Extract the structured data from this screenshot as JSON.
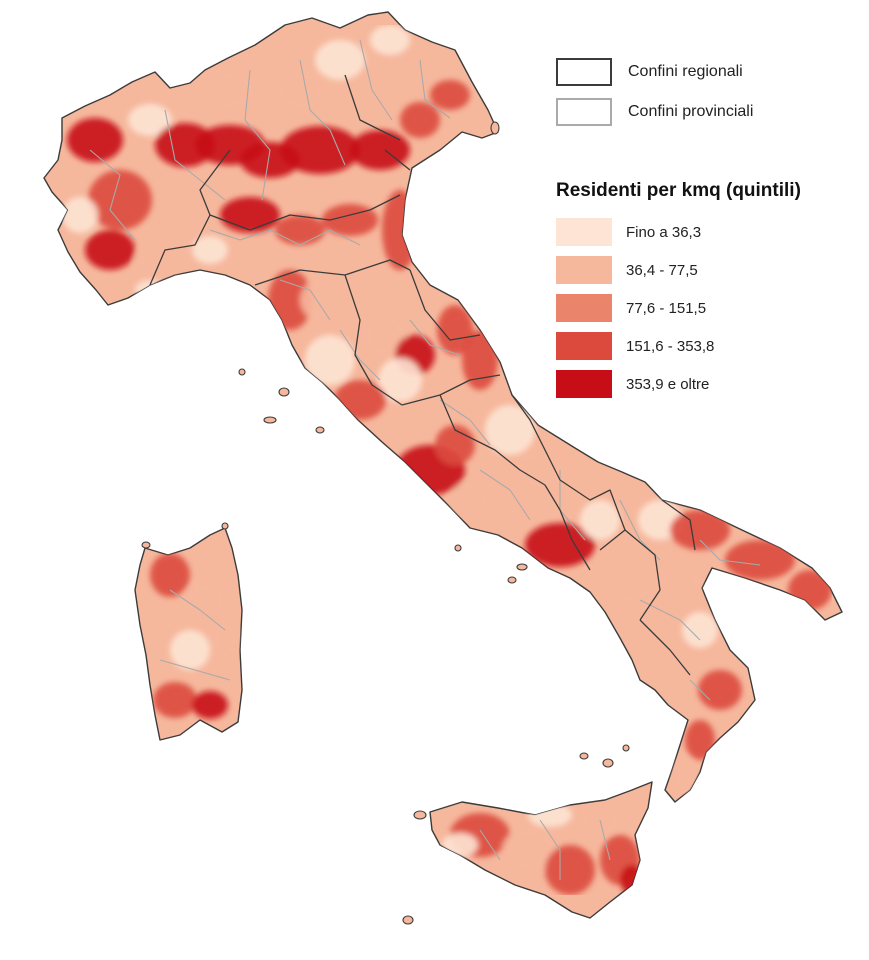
{
  "legend": {
    "borders": [
      {
        "label": "Confini regionali",
        "color": "#3b3b3b"
      },
      {
        "label": "Confini provinciali",
        "color": "#aaaaaa"
      }
    ],
    "title": "Residenti per kmq (quintili)",
    "classes": [
      {
        "label": "Fino a 36,3",
        "color": "#fde4d4"
      },
      {
        "label": "36,4 - 77,5",
        "color": "#f6b89d"
      },
      {
        "label": "77,6 - 151,5",
        "color": "#ea846a"
      },
      {
        "label": "151,6 - 353,8",
        "color": "#dc4a3e"
      },
      {
        "label": "353,9 e oltre",
        "color": "#c70d16"
      }
    ]
  }
}
